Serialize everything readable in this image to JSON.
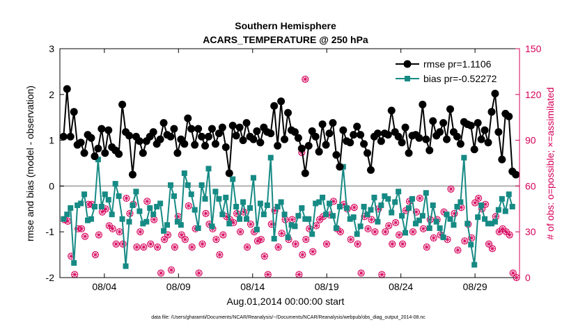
{
  "chart_data": {
    "type": "line",
    "title": "Southern Hemisphere",
    "subtitle": "ACARS_TEMPERATURE @ 250 hPa",
    "xlabel": "Aug.01,2014 00:00:00 start",
    "ylabel_left": "rmse and bias (model - observation)",
    "ylabel_right": "# of obs: o=possible; ×=assimilated",
    "footnote": "data file: /Users/gharamti/Documents/NCAR/Reanalysis/~/Documents/NCAR/Reanalysis/webpub/obs_diag_output_2014-08.nc",
    "xlim": [
      0,
      31
    ],
    "ylim_left": [
      -2,
      3
    ],
    "ylim_right": [
      0,
      150
    ],
    "x_ticks": [
      3,
      8,
      13,
      18,
      23,
      28
    ],
    "x_tick_labels": [
      "08/04",
      "08/09",
      "08/14",
      "08/19",
      "08/24",
      "08/29"
    ],
    "y_ticks_left": [
      -2,
      -1,
      0,
      1,
      2,
      3
    ],
    "y_tick_labels_left": [
      "-2",
      "-1",
      "0",
      "1",
      "2",
      "3"
    ],
    "y_ticks_right": [
      0,
      30,
      60,
      90,
      120,
      150
    ],
    "y_tick_labels_right": [
      "0",
      "30",
      "60",
      "90",
      "120",
      "150"
    ],
    "colors": {
      "rmse": "#000000",
      "bias": "#168a84",
      "obs": "#d6005a",
      "zero_line": "#b0b0b0"
    },
    "series": [
      {
        "name": "rmse pr=1.1106",
        "axis": "left",
        "values": [
          1.08,
          2.12,
          1.08,
          1.62,
          0.9,
          0.95,
          0.72,
          1.12,
          1.05,
          0.65,
          0.82,
          1.25,
          0.72,
          1.22,
          0.85,
          0.78,
          0.7,
          1.78,
          1.18,
          1.1,
          0.25,
          1.08,
          0.98,
          0.72,
          0.98,
          1.08,
          1.18,
          0.92,
          1.02,
          1.38,
          1.12,
          1.08,
          1.25,
          0.72,
          1.02,
          0.92,
          1.48,
          1.25,
          0.9,
          1.25,
          1.08,
          0.88,
          1.08,
          1.25,
          0.92,
          1.15,
          1.28,
          0.85,
          0.28,
          1.32,
          1.1,
          1.28,
          1.0,
          1.38,
          1.08,
          1.02,
          1.2,
          0.95,
          1.28,
          1.18,
          1.15,
          1.75,
          0.88,
          1.85,
          1.02,
          1.6,
          1.22,
          1.18,
          1.05,
          0.82,
          0.28,
          0.88,
          1.2,
          1.08,
          0.75,
          1.35,
          0.9,
          1.15,
          1.38,
          0.68,
          0.42,
          1.22,
          0.98,
          0.95,
          1.12,
          1.3,
          1.12,
          0.92,
          0.72,
          0.35,
          1.08,
          1.15,
          0.98,
          1.15,
          1.12,
          1.65,
          1.18,
          1.08,
          0.95,
          1.28,
          0.72,
          1.1,
          1.12,
          1.05,
          1.78,
          1.02,
          0.78,
          1.42,
          1.1,
          1.18,
          1.38,
          1.02,
          1.68,
          1.18,
          1.08,
          0.92,
          1.4,
          1.35,
          1.32,
          0.8,
          1.38,
          1.02,
          1.22,
          0.95,
          1.62,
          2.02,
          1.18,
          0.58,
          1.58,
          1.52,
          0.32,
          0.25
        ]
      },
      {
        "name": "bias pr=-0.52272",
        "axis": "left",
        "values": [
          -0.72,
          -0.62,
          -0.48,
          -1.68,
          -0.42,
          -0.38,
          -0.18,
          -0.75,
          -0.72,
          -0.45,
          0.58,
          -0.45,
          -0.18,
          -0.3,
          -0.62,
          0.05,
          -0.22,
          -0.72,
          -1.75,
          -0.78,
          -0.42,
          -0.12,
          -0.55,
          -0.82,
          -0.78,
          -0.48,
          -0.62,
          -0.45,
          -0.38,
          -0.98,
          -0.85,
          0.02,
          -0.22,
          -0.78,
          -0.85,
          0.28,
          0.02,
          -0.18,
          -0.52,
          -0.92,
          0.02,
          -0.28,
          0.38,
          -0.88,
          -0.12,
          -0.28,
          -0.62,
          -0.25,
          -0.82,
          0.15,
          -0.45,
          -0.72,
          -0.35,
          -0.72,
          -0.48,
          0.18,
          -0.95,
          -0.38,
          -0.62,
          -0.42,
          0.62,
          -1.15,
          -0.45,
          -0.35,
          -0.62,
          -1.12,
          -0.85,
          -0.88,
          -0.65,
          -0.48,
          -0.72,
          -0.72,
          -1.05,
          -0.38,
          -0.35,
          -0.25,
          -0.62,
          -0.38,
          -0.65,
          -0.92,
          -0.45,
          0.42,
          -0.48,
          -0.72,
          -0.68,
          -1.05,
          -0.88,
          -0.45,
          -0.62,
          -0.52,
          -0.25,
          -0.78,
          -0.42,
          -0.22,
          -0.28,
          -0.58,
          -0.35,
          -0.12,
          -0.65,
          -1.02,
          -0.48,
          -0.28,
          -0.82,
          -0.75,
          -0.65,
          -0.15,
          -0.92,
          -0.42,
          -0.78,
          -0.92,
          -1.12,
          -0.62,
          -0.72,
          -0.85,
          -0.45,
          -0.35,
          0.62,
          -0.82,
          -1.28,
          -1.72,
          -0.68,
          -0.42,
          -0.72,
          -0.82,
          -0.82,
          -0.78,
          -0.52,
          -0.28,
          -0.55,
          -0.18,
          -0.45
        ]
      }
    ],
    "obs_possible": [
      38,
      37,
      14,
      2,
      32,
      32,
      27,
      48,
      48,
      15,
      28,
      43,
      45,
      34,
      32,
      22,
      30,
      22,
      52,
      42,
      48,
      20,
      30,
      20,
      50,
      22,
      38,
      20,
      3,
      25,
      28,
      5,
      20,
      40,
      28,
      25,
      47,
      20,
      32,
      3,
      22,
      42,
      35,
      32,
      25,
      15,
      28,
      40,
      38,
      36,
      42,
      30,
      43,
      20,
      35,
      30,
      24,
      25,
      14,
      2,
      35,
      44,
      20,
      29,
      38,
      25,
      38,
      22,
      2,
      15,
      25,
      32,
      17,
      34,
      38,
      40,
      22,
      41,
      50,
      32,
      30,
      48,
      45,
      25,
      46,
      22,
      3,
      40,
      32,
      38,
      30,
      45,
      2,
      30,
      34,
      22,
      36,
      28,
      22,
      44,
      50,
      30,
      43,
      52,
      32,
      20,
      38,
      26,
      38,
      28,
      43,
      25,
      58,
      42,
      18,
      46,
      24,
      35,
      26,
      49,
      52,
      45,
      48,
      22,
      19,
      40,
      30,
      32,
      30,
      28,
      3,
      0
    ],
    "obs_assimilated": [
      37,
      23,
      15,
      1,
      31,
      33,
      27,
      47,
      47,
      14,
      28,
      42,
      44,
      33,
      31,
      21,
      30,
      21,
      51,
      41,
      47,
      20,
      29,
      19,
      49,
      21,
      37,
      19,
      2,
      24,
      27,
      4,
      19,
      39,
      27,
      24,
      46,
      19,
      31,
      2,
      21,
      41,
      34,
      31,
      24,
      14,
      27,
      39,
      37,
      35,
      41,
      29,
      42,
      19,
      34,
      29,
      23,
      24,
      13,
      1,
      34,
      43,
      19,
      28,
      37,
      24,
      37,
      21,
      1,
      14,
      24,
      31,
      16,
      33,
      37,
      39,
      21,
      40,
      49,
      31,
      29,
      47,
      44,
      24,
      45,
      21,
      2,
      39,
      31,
      37,
      29,
      44,
      1,
      29,
      33,
      21,
      35,
      27,
      21,
      43,
      49,
      29,
      42,
      51,
      31,
      19,
      37,
      25,
      37,
      27,
      42,
      24,
      57,
      41,
      17,
      45,
      23,
      34,
      25,
      48,
      51,
      44,
      47,
      21,
      18,
      39,
      29,
      31,
      29,
      27,
      2,
      1
    ],
    "obs_outliers": [
      {
        "label": "possible",
        "value": 130
      },
      {
        "label": "assimilated",
        "value": 82
      }
    ]
  }
}
